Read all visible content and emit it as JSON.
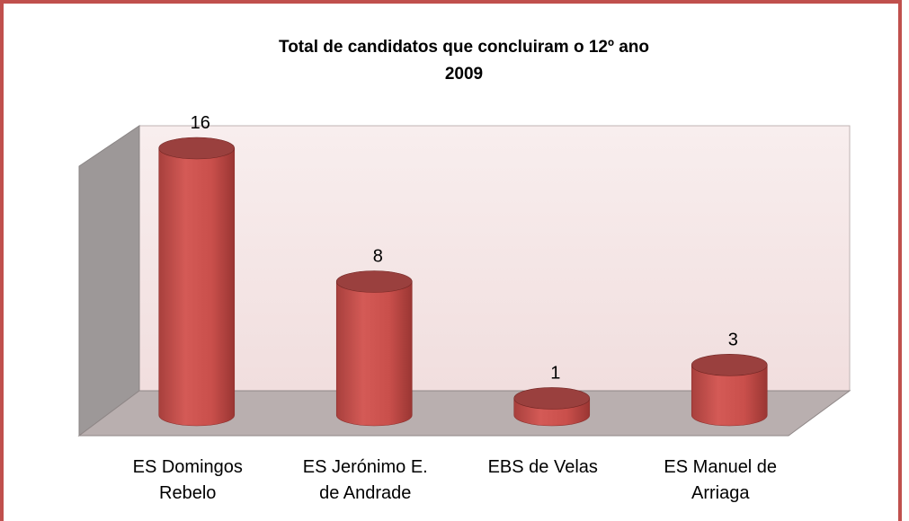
{
  "chart_data": {
    "type": "bar",
    "title": "Total de candidatos que concluiram o 12º ano",
    "subtitle": "2009",
    "categories": [
      "ES Domingos Rebelo",
      "ES Jerónimo E. de Andrade",
      "EBS de Velas",
      "ES Manuel de Arriaga"
    ],
    "values": [
      16,
      8,
      1,
      3
    ],
    "color": "#c0504d",
    "ylim": [
      0,
      16
    ]
  }
}
